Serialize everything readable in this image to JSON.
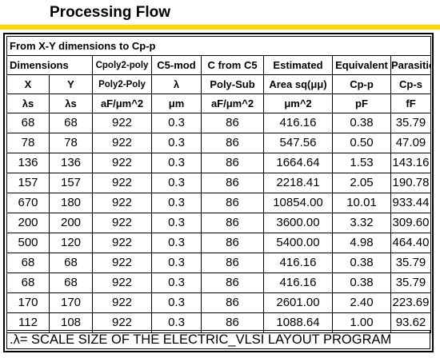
{
  "page": {
    "title": "Processing Flow",
    "accent_color": "#ffd700"
  },
  "table": {
    "caption": "From X-Y dimensions to Cp-p",
    "group_header": {
      "dimensions": "Dimensions",
      "cpoly": "Cpoly2-poly",
      "c5mod": "C5-mod",
      "cfromc5": "C from C5",
      "estimated": "Estimated",
      "equivalent": "Equivalent",
      "parasitic": "Parasitic"
    },
    "sub_header": [
      "X",
      "Y",
      "Poly2-Poly",
      "λ",
      "Poly-Sub",
      "Area sq(μμ)",
      "Cp-p",
      "Cp-s"
    ],
    "unit_header": [
      "λs",
      "λs",
      "aF/μm^2",
      "μm",
      "aF/μm^2",
      "μm^2",
      "pF",
      "fF"
    ],
    "rows": [
      [
        "68",
        "68",
        "922",
        "0.3",
        "86",
        "416.16",
        "0.38",
        "35.79"
      ],
      [
        "78",
        "78",
        "922",
        "0.3",
        "86",
        "547.56",
        "0.50",
        "47.09"
      ],
      [
        "136",
        "136",
        "922",
        "0.3",
        "86",
        "1664.64",
        "1.53",
        "143.16"
      ],
      [
        "157",
        "157",
        "922",
        "0.3",
        "86",
        "2218.41",
        "2.05",
        "190.78"
      ],
      [
        "670",
        "180",
        "922",
        "0.3",
        "86",
        "10854.00",
        "10.01",
        "933.44"
      ],
      [
        "200",
        "200",
        "922",
        "0.3",
        "86",
        "3600.00",
        "3.32",
        "309.60"
      ],
      [
        "500",
        "120",
        "922",
        "0.3",
        "86",
        "5400.00",
        "4.98",
        "464.40"
      ],
      [
        "68",
        "68",
        "922",
        "0.3",
        "86",
        "416.16",
        "0.38",
        "35.79"
      ],
      [
        "68",
        "68",
        "922",
        "0.3",
        "86",
        "416.16",
        "0.38",
        "35.79"
      ],
      [
        "170",
        "170",
        "922",
        "0.3",
        "86",
        "2601.00",
        "2.40",
        "223.69"
      ],
      [
        "112",
        "108",
        "922",
        "0.3",
        "86",
        "1088.64",
        "1.00",
        "93.62"
      ]
    ],
    "footnote": ".λ= SCALE SIZE OF THE ELECTRIC_VLSI LAYOUT PROGRAM"
  }
}
